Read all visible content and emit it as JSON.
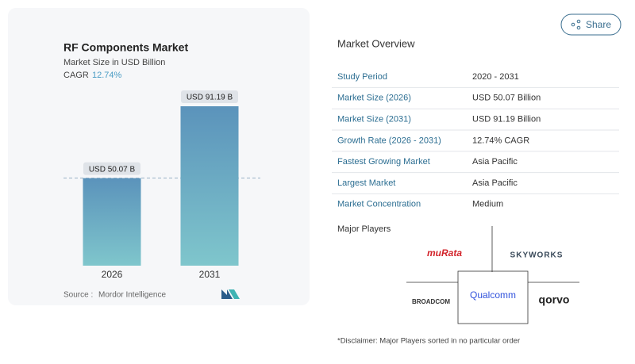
{
  "chart_data": {
    "type": "bar",
    "title": "RF Components Market",
    "subtitle": "Market Size in USD Billion",
    "cagr_label": "CAGR",
    "cagr": "12.74%",
    "categories": [
      "2026",
      "2031"
    ],
    "values": [
      50.07,
      91.19
    ],
    "value_labels": [
      "USD 50.07 B",
      "USD 91.19 B"
    ],
    "color_top": "#5b93bb",
    "color_bottom": "#7fc6cc"
  },
  "source": {
    "label": "Source :",
    "name": "Mordor Intelligence"
  },
  "share": "Share",
  "market_overview": {
    "title": "Market Overview",
    "rows": [
      [
        "Study Period",
        "2020 - 2031"
      ],
      [
        "Market Size (2026)",
        "USD 50.07 Billion"
      ],
      [
        "Market Size (2031)",
        "USD 91.19 Billion"
      ],
      [
        "Growth Rate (2026 - 2031)",
        "12.74% CAGR"
      ],
      [
        "Fastest Growing Market",
        "Asia Pacific"
      ],
      [
        "Largest Market",
        "Asia Pacific"
      ],
      [
        "Market Concentration",
        "Medium"
      ]
    ]
  },
  "major_players": {
    "title": "Major Players",
    "players": [
      "muRata",
      "SKYWORKS",
      "BROADCOM",
      "Qualcomm",
      "qorvo"
    ]
  },
  "disclaimer": "*Disclaimer: Major Players sorted in no particular order"
}
